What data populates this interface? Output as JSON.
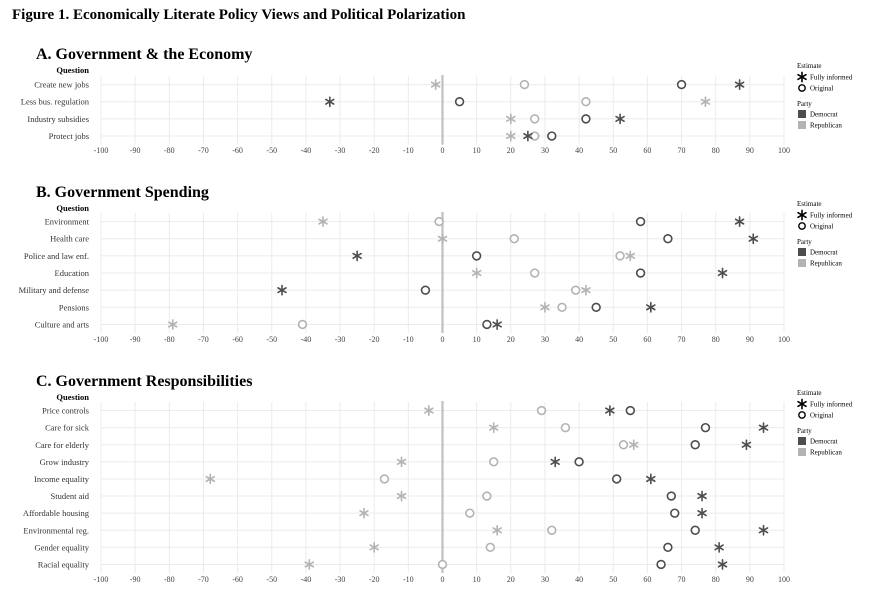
{
  "figure_title": "Figure 1. Economically Literate Policy Views and Political Polarization",
  "colors": {
    "democrat": "#4d4d4d",
    "republican": "#b3b3b3",
    "grid": "#ebebeb",
    "zero_line": "#c0c0c0"
  },
  "legend": {
    "estimate_title": "Estimate",
    "estimate_items": [
      "Fully informed",
      "Original"
    ],
    "party_title": "Party",
    "party_items": [
      "Democrat",
      "Republican"
    ]
  },
  "chart_data": [
    {
      "type": "scatter",
      "title": "A.  Government & the Economy",
      "ylabel": "Question",
      "xlim": [
        -100,
        100
      ],
      "xticks": [
        -100,
        -90,
        -80,
        -70,
        -60,
        -50,
        -40,
        -30,
        -20,
        -10,
        0,
        10,
        20,
        30,
        40,
        50,
        60,
        70,
        80,
        90,
        100
      ],
      "categories": [
        "Create new jobs",
        "Less bus. regulation",
        "Industry subsidies",
        "Protect jobs"
      ],
      "series": [
        {
          "name": "Democrat Fully informed",
          "party": "democrat",
          "estimate": "fully_informed",
          "values": [
            87,
            -33,
            52,
            25
          ]
        },
        {
          "name": "Democrat Original",
          "party": "democrat",
          "estimate": "original",
          "values": [
            70,
            5,
            42,
            32
          ]
        },
        {
          "name": "Republican Fully informed",
          "party": "republican",
          "estimate": "fully_informed",
          "values": [
            -2,
            77,
            20,
            20
          ]
        },
        {
          "name": "Republican Original",
          "party": "republican",
          "estimate": "original",
          "values": [
            24,
            42,
            27,
            27
          ]
        }
      ]
    },
    {
      "type": "scatter",
      "title": "B.  Government Spending",
      "ylabel": "Question",
      "xlim": [
        -100,
        100
      ],
      "xticks": [
        -100,
        -90,
        -80,
        -70,
        -60,
        -50,
        -40,
        -30,
        -20,
        -10,
        0,
        10,
        20,
        30,
        40,
        50,
        60,
        70,
        80,
        90,
        100
      ],
      "categories": [
        "Environment",
        "Health care",
        "Police and law enf.",
        "Education",
        "Military and defense",
        "Pensions",
        "Culture and arts"
      ],
      "series": [
        {
          "name": "Democrat Fully informed",
          "party": "democrat",
          "estimate": "fully_informed",
          "values": [
            87,
            91,
            -25,
            82,
            -47,
            61,
            16
          ]
        },
        {
          "name": "Democrat Original",
          "party": "democrat",
          "estimate": "original",
          "values": [
            58,
            66,
            10,
            58,
            -5,
            45,
            13
          ]
        },
        {
          "name": "Republican Fully informed",
          "party": "republican",
          "estimate": "fully_informed",
          "values": [
            -35,
            0,
            55,
            10,
            42,
            30,
            -79
          ]
        },
        {
          "name": "Republican Original",
          "party": "republican",
          "estimate": "original",
          "values": [
            -1,
            21,
            52,
            27,
            39,
            35,
            -41
          ]
        }
      ]
    },
    {
      "type": "scatter",
      "title": "C.  Government Responsibilities",
      "ylabel": "Question",
      "xlim": [
        -100,
        100
      ],
      "xticks": [
        -100,
        -90,
        -80,
        -70,
        -60,
        -50,
        -40,
        -30,
        -20,
        -10,
        0,
        10,
        20,
        30,
        40,
        50,
        60,
        70,
        80,
        90,
        100
      ],
      "categories": [
        "Price controls",
        "Care for sick",
        "Care for elderly",
        "Grow industry",
        "Income equality",
        "Student aid",
        "Affordable housing",
        "Environmental reg.",
        "Gender equality",
        "Racial equality"
      ],
      "series": [
        {
          "name": "Democrat Fully informed",
          "party": "democrat",
          "estimate": "fully_informed",
          "values": [
            49,
            94,
            89,
            33,
            61,
            76,
            76,
            94,
            81,
            82
          ]
        },
        {
          "name": "Democrat Original",
          "party": "democrat",
          "estimate": "original",
          "values": [
            55,
            77,
            74,
            40,
            51,
            67,
            68,
            74,
            66,
            64
          ]
        },
        {
          "name": "Republican Fully informed",
          "party": "republican",
          "estimate": "fully_informed",
          "values": [
            -4,
            15,
            56,
            -12,
            -68,
            -12,
            -23,
            16,
            -20,
            -39
          ]
        },
        {
          "name": "Republican Original",
          "party": "republican",
          "estimate": "original",
          "values": [
            29,
            36,
            53,
            15,
            -17,
            13,
            8,
            32,
            14,
            0
          ]
        }
      ]
    }
  ]
}
